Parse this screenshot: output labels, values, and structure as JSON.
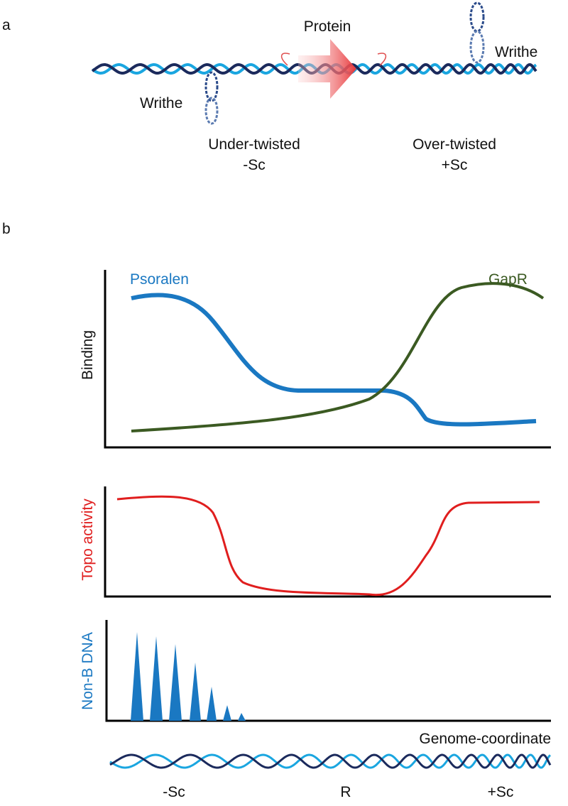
{
  "panel_a": {
    "label": "a",
    "protein": "Protein",
    "writhe_left": "Writhe",
    "writhe_right": "Writhe",
    "left_state": {
      "title": "Under-twisted",
      "sign": "-Sc"
    },
    "right_state": {
      "title": "Over-twisted",
      "sign": "+Sc"
    }
  },
  "panel_b": {
    "label": "b",
    "binding_plot": {
      "y_label": "Binding",
      "series": [
        "Psoralen",
        "GapR"
      ]
    },
    "topo_plot": {
      "y_label": "Topo activity"
    },
    "nonb_plot": {
      "y_label": "Non-B DNA"
    },
    "x_label": "Genome-coordinate",
    "regions": [
      "-Sc",
      "R",
      "+Sc"
    ]
  }
}
